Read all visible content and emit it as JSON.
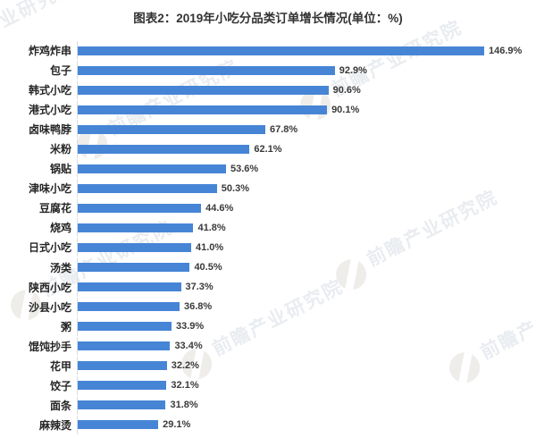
{
  "header": {
    "title": "图表2：2019年小吃分品类订单增长情况(单位：%)"
  },
  "chart_data": {
    "type": "bar",
    "orientation": "horizontal",
    "title": "图表2：2019年小吃分品类订单增长情况(单位：%)",
    "xlabel": "",
    "ylabel": "",
    "unit": "%",
    "grid": false,
    "legend": "none",
    "xlim": [
      0,
      160
    ],
    "bar_color": "#4685d6",
    "categories": [
      "炸鸡炸串",
      "包子",
      "韩式小吃",
      "港式小吃",
      "卤味鸭脖",
      "米粉",
      "锅贴",
      "津味小吃",
      "豆腐花",
      "烧鸡",
      "日式小吃",
      "汤类",
      "陕西小吃",
      "沙县小吃",
      "粥",
      "馄饨抄手",
      "花甲",
      "饺子",
      "面条",
      "麻辣烫"
    ],
    "values": [
      146.9,
      92.9,
      90.6,
      90.1,
      67.8,
      62.1,
      53.6,
      50.3,
      44.6,
      41.8,
      41.0,
      40.5,
      37.3,
      36.8,
      33.9,
      33.4,
      32.2,
      32.1,
      31.8,
      29.1
    ],
    "value_labels": [
      "146.9%",
      "92.9%",
      "90.6%",
      "90.1%",
      "67.8%",
      "62.1%",
      "53.6%",
      "50.3%",
      "44.6%",
      "41.8%",
      "41.0%",
      "40.5%",
      "37.3%",
      "36.8%",
      "33.9%",
      "33.4%",
      "32.2%",
      "32.1%",
      "31.8%",
      "29.1%"
    ]
  },
  "watermark": {
    "text": "前瞻产业研究院",
    "tagline_dots": "· · · · · · · · · ·"
  }
}
